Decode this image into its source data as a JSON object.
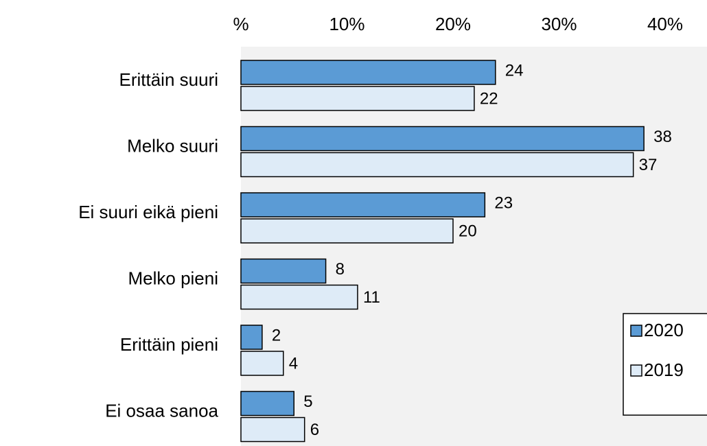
{
  "chart_data": {
    "type": "bar",
    "orientation": "horizontal",
    "categories": [
      "Erittäin suuri",
      "Melko suuri",
      "Ei suuri eikä pieni",
      "Melko pieni",
      "Erittäin pieni",
      "Ei osaa sanoa"
    ],
    "series": [
      {
        "name": "2020",
        "color": "#5b9bd5",
        "values": [
          24,
          38,
          23,
          8,
          2,
          5
        ]
      },
      {
        "name": "2019",
        "color": "#deebf7",
        "values": [
          22,
          37,
          20,
          11,
          4,
          6
        ]
      }
    ],
    "xlim": [
      0,
      44
    ],
    "xticks": [
      {
        "value": 0,
        "label": "%"
      },
      {
        "value": 10,
        "label": "10%"
      },
      {
        "value": 20,
        "label": "20%"
      },
      {
        "value": 30,
        "label": "30%"
      },
      {
        "value": 40,
        "label": "40%"
      }
    ],
    "grid": false,
    "legend": "right"
  }
}
